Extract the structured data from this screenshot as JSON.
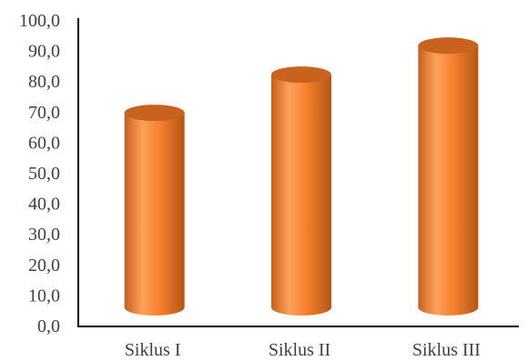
{
  "chart_data": {
    "type": "bar",
    "style": "3d-cylinder",
    "categories": [
      "Siklus I",
      "Siklus II",
      "Siklus III"
    ],
    "values": [
      72,
      84.5,
      94
    ],
    "ylim": [
      0,
      100
    ],
    "yticks": [
      "0,0",
      "10,0",
      "20,0",
      "30,0",
      "40,0",
      "50,0",
      "60,0",
      "70,0",
      "80,0",
      "90,0",
      "100,0"
    ],
    "title": "",
    "xlabel": "",
    "ylabel": "",
    "grid": false,
    "legend": "none",
    "colors": {
      "bar_light": "#ffa15a",
      "bar_main": "#f47f2b",
      "bar_dark": "#b3561a",
      "top": "#c8621e",
      "axis": "#000000",
      "text": "#404040"
    }
  }
}
